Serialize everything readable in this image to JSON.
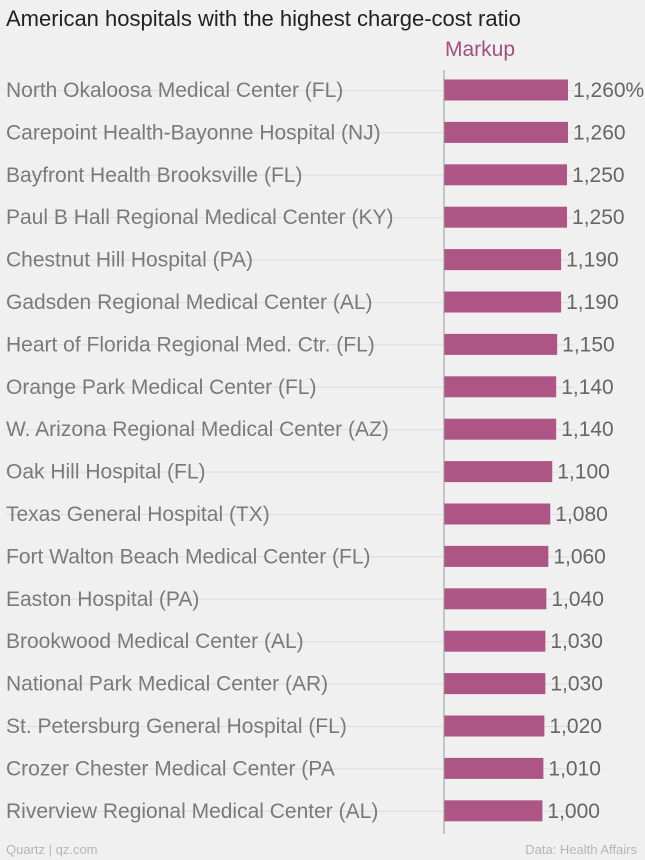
{
  "title": "American hospitals with the highest charge-cost ratio",
  "source_left": "Quartz | qz.com",
  "source_right": "Data: Health Affairs",
  "colors": {
    "bar": "#ad5585",
    "series_label": "#a0507f",
    "grid": "#dcdcdc",
    "axis": "#9a9a9a"
  },
  "chart_data": {
    "type": "bar",
    "orientation": "horizontal",
    "series": [
      {
        "name": "Markup"
      }
    ],
    "categories": [
      "North Okaloosa Medical Center (FL)",
      "Carepoint Health-Bayonne Hospital (NJ)",
      "Bayfront Health Brooksville (FL)",
      "Paul B Hall Regional Medical Center (KY)",
      "Chestnut Hill Hospital (PA)",
      "Gadsden Regional Medical Center (AL)",
      "Heart of Florida Regional Med. Ctr. (FL)",
      "Orange Park Medical Center (FL)",
      "W. Arizona Regional Medical Center (AZ)",
      "Oak Hill Hospital (FL)",
      "Texas General Hospital (TX)",
      "Fort Walton Beach Medical Center (FL)",
      "Easton Hospital (PA)",
      "Brookwood Medical Center (AL)",
      "National Park Medical Center (AR)",
      "St. Petersburg General Hospital (FL)",
      "Crozer Chester Medical Center (PA",
      "Riverview Regional Medical Center (AL)"
    ],
    "values": [
      1260,
      1260,
      1250,
      1250,
      1190,
      1190,
      1150,
      1140,
      1140,
      1100,
      1080,
      1060,
      1040,
      1030,
      1030,
      1020,
      1010,
      1000
    ],
    "value_labels": [
      "1,260%",
      "1,260",
      "1,250",
      "1,250",
      "1,190",
      "1,190",
      "1,150",
      "1,140",
      "1,140",
      "1,100",
      "1,080",
      "1,060",
      "1,040",
      "1,030",
      "1,030",
      "1,020",
      "1,010",
      "1,000"
    ],
    "xlim": [
      0,
      1260
    ],
    "grid": true
  }
}
